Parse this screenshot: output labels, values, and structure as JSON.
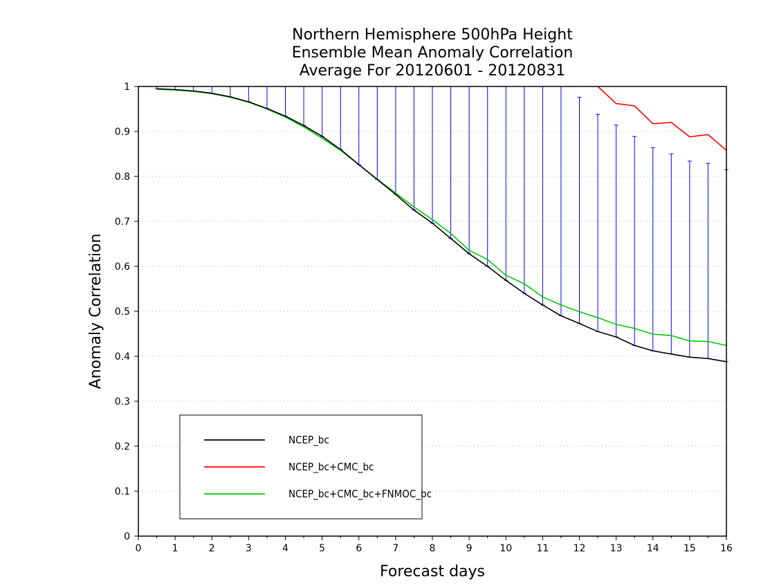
{
  "chart_data": {
    "type": "line",
    "title": [
      "Northern Hemisphere 500hPa Height",
      "Ensemble Mean Anomaly Correlation",
      "Average For 20120601 - 20120831"
    ],
    "xlabel": "Forecast days",
    "ylabel": "Anomaly Correlation",
    "xlim": [
      0,
      16
    ],
    "ylim": [
      0,
      1
    ],
    "xticks": [
      0,
      1,
      2,
      3,
      4,
      5,
      6,
      7,
      8,
      9,
      10,
      11,
      12,
      13,
      14,
      15,
      16
    ],
    "yticks": [
      0,
      0.1,
      0.2,
      0.3,
      0.4,
      0.5,
      0.6,
      0.7,
      0.8,
      0.9,
      1
    ],
    "ytick_labels": [
      "0",
      "0.1",
      "0.2",
      "0.3",
      "0.4",
      "0.5",
      "0.6",
      "0.7",
      "0.8",
      "0.9",
      "1"
    ],
    "grid": true,
    "legend_position": "lower-left",
    "x": [
      0.5,
      1,
      1.5,
      2,
      2.5,
      3,
      3.5,
      4,
      4.5,
      5,
      5.5,
      6,
      6.5,
      7,
      7.5,
      8,
      8.5,
      9,
      9.5,
      10,
      10.5,
      11,
      11.5,
      12,
      12.5,
      13,
      13.5,
      14,
      14.5,
      15,
      15.5,
      16
    ],
    "series": [
      {
        "name": "NCEP_bc",
        "color": "#000000",
        "values": [
          0.995,
          0.993,
          0.99,
          0.985,
          0.977,
          0.966,
          0.951,
          0.934,
          0.913,
          0.889,
          0.86,
          0.826,
          0.793,
          0.76,
          0.725,
          0.696,
          0.662,
          0.628,
          0.6,
          0.569,
          0.54,
          0.514,
          0.49,
          0.473,
          0.455,
          0.443,
          0.424,
          0.412,
          0.405,
          0.398,
          0.395,
          0.388
        ]
      },
      {
        "name": "NCEP_bc+CMC_bc",
        "color": "#ff0000",
        "values": [
          null,
          null,
          null,
          null,
          null,
          null,
          null,
          null,
          null,
          null,
          null,
          null,
          null,
          null,
          null,
          null,
          null,
          null,
          null,
          null,
          null,
          null,
          null,
          null,
          1.0,
          0.962,
          0.957,
          0.917,
          0.92,
          0.888,
          0.893,
          0.858
        ]
      },
      {
        "name": "NCEP_bc+CMC_bc+FNMOC_bc",
        "color": "#00cc00",
        "values": [
          0.994,
          0.992,
          0.989,
          0.984,
          0.976,
          0.965,
          0.95,
          0.932,
          0.91,
          0.885,
          0.858,
          0.826,
          0.794,
          0.763,
          0.732,
          0.704,
          0.673,
          0.636,
          0.615,
          0.58,
          0.561,
          0.532,
          0.514,
          0.499,
          0.486,
          0.471,
          0.462,
          0.449,
          0.446,
          0.434,
          0.433,
          0.424
        ]
      }
    ],
    "error_bars": {
      "color": "#0000ff",
      "upper": [
        1,
        1,
        1,
        1,
        1,
        1,
        1,
        1,
        1,
        1,
        1,
        1,
        1,
        1,
        1,
        1,
        1,
        1,
        1,
        1,
        1,
        1,
        1,
        0.976,
        0.938,
        0.914,
        0.889,
        0.864,
        0.85,
        0.834,
        0.829,
        0.815
      ]
    }
  }
}
